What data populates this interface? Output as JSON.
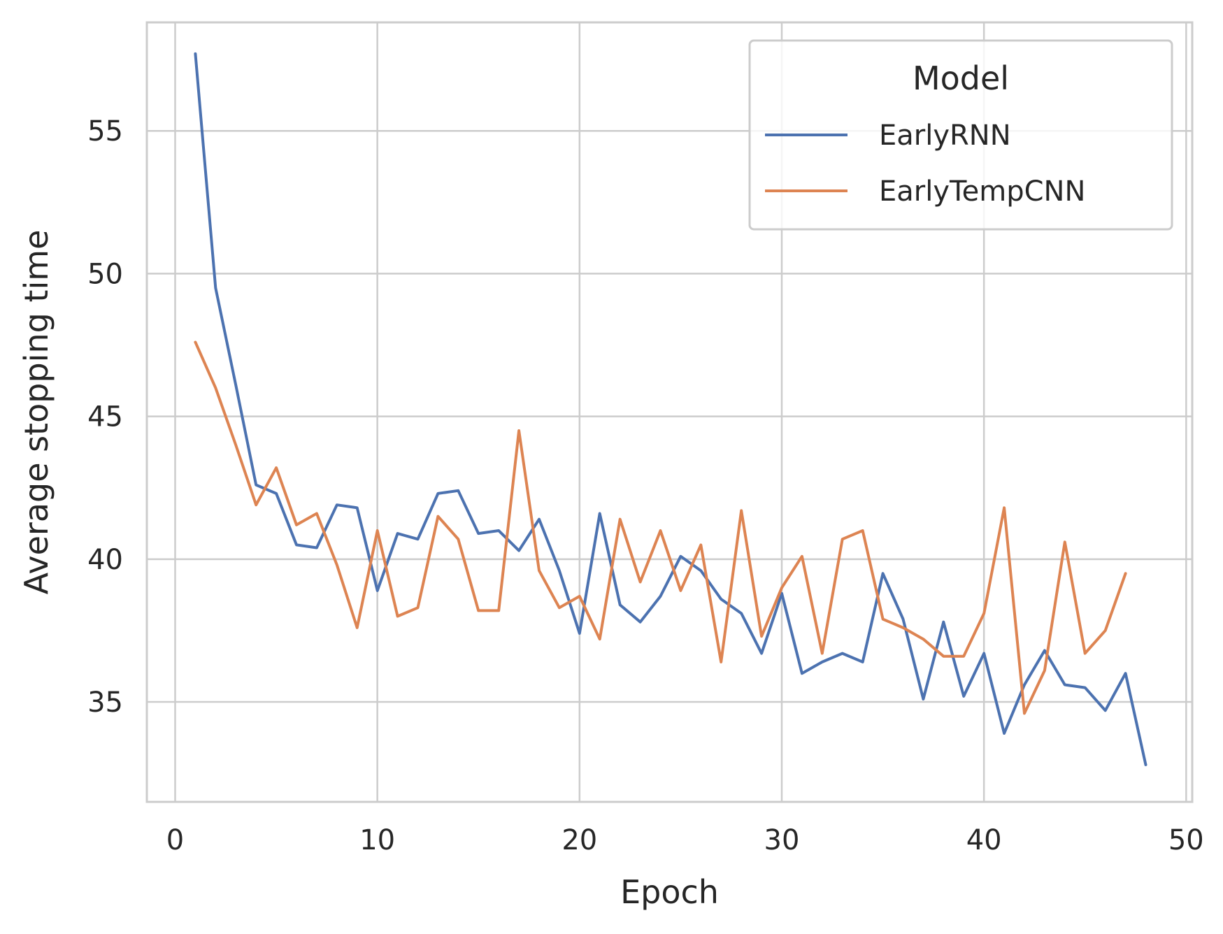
{
  "chart_data": {
    "type": "line",
    "xlabel": "Epoch",
    "ylabel": "Average stopping time",
    "xlim": [
      -1.4,
      50.3
    ],
    "ylim": [
      31.5,
      58.8
    ],
    "xticks": [
      0,
      10,
      20,
      30,
      40,
      50
    ],
    "yticks": [
      35,
      40,
      45,
      50,
      55
    ],
    "grid": true,
    "legend": {
      "title": "Model",
      "placement": "top-right"
    },
    "series": [
      {
        "name": "EarlyRNN",
        "color": "#4c72b0",
        "x": [
          1,
          2,
          3,
          4,
          5,
          6,
          7,
          8,
          9,
          10,
          11,
          12,
          13,
          14,
          15,
          16,
          17,
          18,
          19,
          20,
          21,
          22,
          23,
          24,
          25,
          26,
          27,
          28,
          29,
          30,
          31,
          32,
          33,
          34,
          35,
          36,
          37,
          38,
          39,
          40,
          41,
          42,
          43,
          44,
          45,
          46,
          47,
          48
        ],
        "y": [
          57.7,
          49.5,
          46.1,
          42.6,
          42.3,
          40.5,
          40.4,
          41.9,
          41.8,
          38.9,
          40.9,
          40.7,
          42.3,
          42.4,
          40.9,
          41.0,
          40.3,
          41.4,
          39.6,
          37.4,
          41.6,
          38.4,
          37.8,
          38.7,
          40.1,
          39.6,
          38.6,
          38.1,
          36.7,
          38.8,
          36.0,
          36.4,
          36.7,
          36.4,
          39.5,
          37.9,
          35.1,
          37.8,
          35.2,
          36.7,
          33.9,
          35.6,
          36.8,
          35.6,
          35.5,
          34.7,
          36.0,
          32.8
        ]
      },
      {
        "name": "EarlyTempCNN",
        "color": "#dd8452",
        "x": [
          1,
          2,
          3,
          4,
          5,
          6,
          7,
          8,
          9,
          10,
          11,
          12,
          13,
          14,
          15,
          16,
          17,
          18,
          19,
          20,
          21,
          22,
          23,
          24,
          25,
          26,
          27,
          28,
          29,
          30,
          31,
          32,
          33,
          34,
          35,
          36,
          37,
          38,
          39,
          40,
          41,
          42,
          43,
          44,
          45,
          46,
          47
        ],
        "y": [
          47.6,
          46.0,
          44.0,
          41.9,
          43.2,
          41.2,
          41.6,
          39.8,
          37.6,
          41.0,
          38.0,
          38.3,
          41.5,
          40.7,
          38.2,
          38.2,
          44.5,
          39.6,
          38.3,
          38.7,
          37.2,
          41.4,
          39.2,
          41.0,
          38.9,
          40.5,
          36.4,
          41.7,
          37.3,
          39.0,
          40.1,
          36.7,
          40.7,
          41.0,
          37.9,
          37.6,
          37.2,
          36.6,
          36.6,
          38.1,
          41.8,
          34.6,
          36.1,
          40.6,
          36.7,
          37.5,
          39.5
        ]
      }
    ]
  }
}
